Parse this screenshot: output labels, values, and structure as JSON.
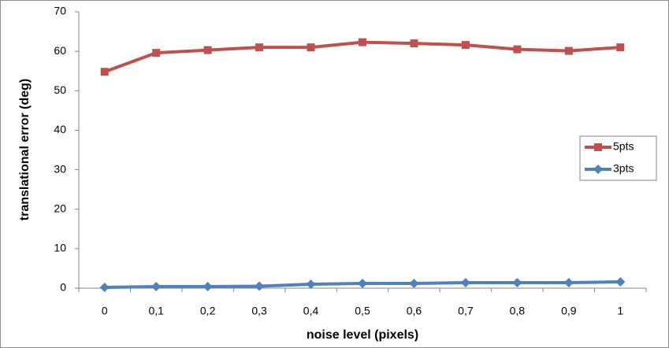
{
  "chart_data": {
    "type": "line",
    "x_label": "noise level (pixels)",
    "y_label": "translational error (deg)",
    "categories": [
      "0",
      "0,1",
      "0,2",
      "0,3",
      "0,4",
      "0,5",
      "0,6",
      "0,7",
      "0,8",
      "0,9",
      "1"
    ],
    "series": [
      {
        "name": "5pts",
        "color": "#c0504d",
        "marker": "square",
        "values": [
          54.8,
          59.6,
          60.3,
          61,
          61,
          62.3,
          62,
          61.6,
          60.5,
          60.1,
          61
        ]
      },
      {
        "name": "3pts",
        "color": "#4f81bd",
        "marker": "diamond",
        "values": [
          0.2,
          0.4,
          0.4,
          0.5,
          1.0,
          1.2,
          1.2,
          1.4,
          1.4,
          1.4,
          1.6
        ]
      }
    ],
    "ylim": [
      0,
      70
    ],
    "yticks": [
      0,
      10,
      20,
      30,
      40,
      50,
      60,
      70
    ],
    "grid": false,
    "legend": "right"
  }
}
